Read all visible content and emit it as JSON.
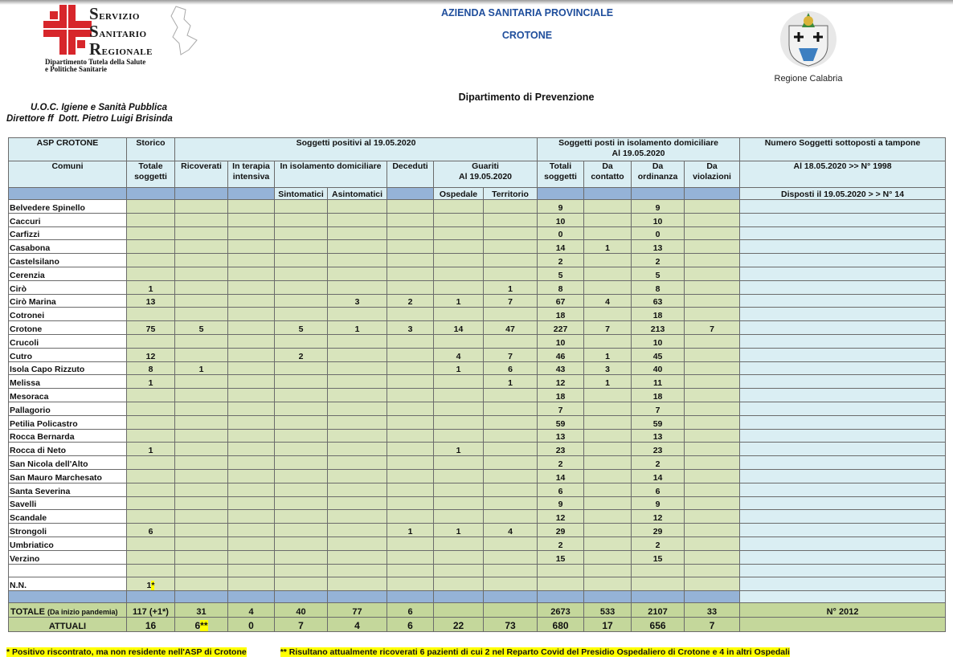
{
  "header": {
    "logo_lines": [
      "Servizio",
      "Sanitario",
      "Regionale"
    ],
    "logo_subtitle": [
      "Dipartimento Tutela della Salute",
      "e Politiche Sanitarie"
    ],
    "agency": "AZIENDA SANITARIA PROVINCIALE",
    "city": "CROTONE",
    "region": "Regione Calabria",
    "department": "Dipartimento di Prevenzione",
    "unit": "U.O.C. Igiene e Sanità Pubblica",
    "director": "Direttore ff  Dott. Pietro Luigi Brisinda"
  },
  "table": {
    "head1": {
      "asp": "ASP CROTONE",
      "storico": "Storico",
      "positivi": "Soggetti positivi al 19.05.2020",
      "isolamento": "Soggetti posti in isolamento domiciliare",
      "isolamento_date": "Al 19.05.2020",
      "tamponi": "Numero Soggetti sottoposti a tampone"
    },
    "head2": {
      "comuni": "Comuni",
      "totale": "Totale soggetti",
      "ricoverati": "Ricoverati",
      "terapia": "In terapia intensiva",
      "isolamento_dom": "In isolamento domiciliare",
      "deceduti": "Deceduti",
      "guariti": "Guariti",
      "guariti_date": "Al 19.05.2020",
      "totali": "Totali soggetti",
      "contatto": "Da contatto",
      "ordinanza": "Da ordinanza",
      "violazioni": "Da violazioni",
      "tamponi_18": "Al 18.05.2020 >> N° 1998"
    },
    "head3": {
      "sintomatici": "Sintomatici",
      "asintomatici": "Asintomatici",
      "ospedale": "Ospedale",
      "territorio": "Territorio",
      "tamponi_19": "Disposti il 19.05.2020 > > N° 14"
    },
    "rows": [
      [
        "Belvedere Spinello",
        null,
        null,
        null,
        null,
        null,
        null,
        null,
        null,
        9,
        null,
        9,
        null
      ],
      [
        "Caccuri",
        null,
        null,
        null,
        null,
        null,
        null,
        null,
        null,
        10,
        null,
        10,
        null
      ],
      [
        "Carfizzi",
        null,
        null,
        null,
        null,
        null,
        null,
        null,
        null,
        0,
        null,
        0,
        null
      ],
      [
        "Casabona",
        null,
        null,
        null,
        null,
        null,
        null,
        null,
        null,
        14,
        1,
        13,
        null
      ],
      [
        "Castelsilano",
        null,
        null,
        null,
        null,
        null,
        null,
        null,
        null,
        2,
        null,
        2,
        null
      ],
      [
        "Cerenzia",
        null,
        null,
        null,
        null,
        null,
        null,
        null,
        null,
        5,
        null,
        5,
        null
      ],
      [
        "Cirò",
        1,
        null,
        null,
        null,
        null,
        null,
        null,
        1,
        8,
        null,
        8,
        null
      ],
      [
        "Cirò Marina",
        13,
        null,
        null,
        null,
        3,
        2,
        1,
        7,
        67,
        4,
        63,
        null
      ],
      [
        "Cotronei",
        null,
        null,
        null,
        null,
        null,
        null,
        null,
        null,
        18,
        null,
        18,
        null
      ],
      [
        "Crotone",
        75,
        5,
        null,
        5,
        1,
        3,
        14,
        47,
        227,
        7,
        213,
        7
      ],
      [
        "Crucoli",
        null,
        null,
        null,
        null,
        null,
        null,
        null,
        null,
        10,
        null,
        10,
        null
      ],
      [
        "Cutro",
        12,
        null,
        null,
        2,
        null,
        null,
        4,
        7,
        46,
        1,
        45,
        null
      ],
      [
        "Isola Capo Rizzuto",
        8,
        1,
        null,
        null,
        null,
        null,
        1,
        6,
        43,
        3,
        40,
        null
      ],
      [
        "Melissa",
        1,
        null,
        null,
        null,
        null,
        null,
        null,
        1,
        12,
        1,
        11,
        null
      ],
      [
        "Mesoraca",
        null,
        null,
        null,
        null,
        null,
        null,
        null,
        null,
        18,
        null,
        18,
        null
      ],
      [
        "Pallagorio",
        null,
        null,
        null,
        null,
        null,
        null,
        null,
        null,
        7,
        null,
        7,
        null
      ],
      [
        "Petilia Policastro",
        null,
        null,
        null,
        null,
        null,
        null,
        null,
        null,
        59,
        null,
        59,
        null
      ],
      [
        "Rocca Bernarda",
        null,
        null,
        null,
        null,
        null,
        null,
        null,
        null,
        13,
        null,
        13,
        null
      ],
      [
        "Rocca di Neto",
        1,
        null,
        null,
        null,
        null,
        null,
        1,
        null,
        23,
        null,
        23,
        null
      ],
      [
        "San Nicola dell'Alto",
        null,
        null,
        null,
        null,
        null,
        null,
        null,
        null,
        2,
        null,
        2,
        null
      ],
      [
        "San Mauro Marchesato",
        null,
        null,
        null,
        null,
        null,
        null,
        null,
        null,
        14,
        null,
        14,
        null
      ],
      [
        "Santa Severina",
        null,
        null,
        null,
        null,
        null,
        null,
        null,
        null,
        6,
        null,
        6,
        null
      ],
      [
        "Savelli",
        null,
        null,
        null,
        null,
        null,
        null,
        null,
        null,
        9,
        null,
        9,
        null
      ],
      [
        "Scandale",
        null,
        null,
        null,
        null,
        null,
        null,
        null,
        null,
        12,
        null,
        12,
        null
      ],
      [
        "Strongoli",
        6,
        null,
        null,
        null,
        null,
        1,
        1,
        4,
        29,
        null,
        29,
        null
      ],
      [
        "Umbriatico",
        null,
        null,
        null,
        null,
        null,
        null,
        null,
        null,
        2,
        null,
        2,
        null
      ],
      [
        "Verzino",
        null,
        null,
        null,
        null,
        null,
        null,
        null,
        null,
        15,
        null,
        15,
        null
      ]
    ],
    "nn": {
      "label": "N.N.",
      "total": 1,
      "note": "*"
    },
    "totale": {
      "label": "TOTALE",
      "label_note": "(Da inizio pandemia)",
      "values": [
        "117 (+1*)",
        31,
        4,
        40,
        77,
        6,
        null,
        null,
        2673,
        533,
        2107,
        33
      ],
      "tamponi": "N° 2012"
    },
    "attuali": {
      "label": "ATTUALI",
      "values": [
        16,
        6,
        0,
        7,
        4,
        6,
        22,
        73,
        680,
        17,
        656,
        7
      ],
      "ricoverati_note": "**"
    }
  },
  "footnotes": [
    "*  Positivo riscontrato, ma non residente nell'ASP di Crotone",
    "** Risultano attualmente ricoverati 6 pazienti di cui 2 nel Reparto Covid del Presidio Ospedaliero di Crotone e 4 in altri Ospedali"
  ]
}
